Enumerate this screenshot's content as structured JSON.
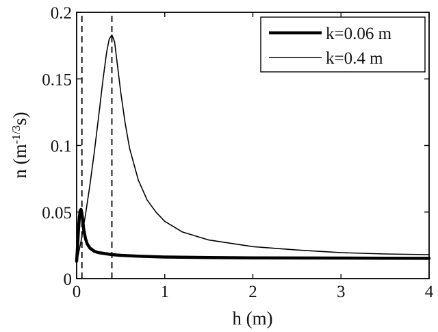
{
  "chart_data": {
    "type": "line",
    "title": "",
    "xlabel": "h (m)",
    "ylabel_parts": {
      "prefix": "n (m",
      "superscript": "-1/3",
      "suffix": "s)"
    },
    "xlim": [
      0,
      4
    ],
    "ylim": [
      0,
      0.2
    ],
    "xticks": [
      0,
      1,
      2,
      3,
      4
    ],
    "xtick_labels": [
      "0",
      "1",
      "2",
      "3",
      "4"
    ],
    "yticks": [
      0,
      0.05,
      0.1,
      0.15,
      0.2
    ],
    "ytick_labels": [
      "0",
      "0.05",
      "0.1",
      "0.15",
      "0.2"
    ],
    "grid": false,
    "legend_position": "top-right",
    "colors": {
      "line": "#000000",
      "axis": "#000000",
      "background": "#ffffff"
    },
    "series": [
      {
        "name": "k=0.06 m",
        "line_style": "thick",
        "x": [
          0.0,
          0.01,
          0.02,
          0.03,
          0.04,
          0.05,
          0.06,
          0.07,
          0.08,
          0.1,
          0.12,
          0.15,
          0.2,
          0.25,
          0.3,
          0.4,
          0.5,
          0.7,
          1.0,
          1.5,
          2.0,
          2.5,
          3.0,
          3.5,
          4.0
        ],
        "y": [
          0.013,
          0.024,
          0.036,
          0.046,
          0.051,
          0.052,
          0.049,
          0.043,
          0.037,
          0.03,
          0.026,
          0.023,
          0.0205,
          0.0195,
          0.019,
          0.018,
          0.0175,
          0.0168,
          0.0162,
          0.0158,
          0.0156,
          0.0155,
          0.0154,
          0.0153,
          0.0152
        ]
      },
      {
        "name": "k=0.4 m",
        "line_style": "thin",
        "x": [
          0.0,
          0.05,
          0.1,
          0.15,
          0.2,
          0.25,
          0.3,
          0.34,
          0.37,
          0.4,
          0.43,
          0.46,
          0.5,
          0.55,
          0.6,
          0.7,
          0.8,
          0.9,
          1.0,
          1.2,
          1.5,
          2.0,
          2.5,
          3.0,
          3.5,
          4.0
        ],
        "y": [
          0.012,
          0.028,
          0.048,
          0.07,
          0.095,
          0.122,
          0.15,
          0.17,
          0.18,
          0.183,
          0.178,
          0.162,
          0.14,
          0.117,
          0.098,
          0.074,
          0.059,
          0.05,
          0.043,
          0.035,
          0.029,
          0.024,
          0.0215,
          0.0195,
          0.0185,
          0.018
        ]
      }
    ],
    "reference_lines": [
      {
        "axis": "x",
        "value": 0.06,
        "style": "dashed"
      },
      {
        "axis": "x",
        "value": 0.4,
        "style": "dashed"
      }
    ]
  }
}
